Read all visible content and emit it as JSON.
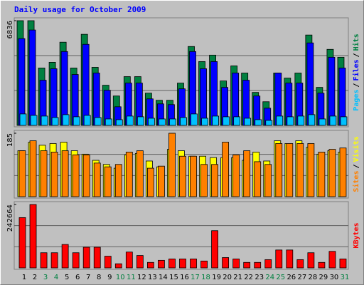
{
  "chart_data": [
    {
      "type": "bar",
      "title": "Daily usage for October 2009",
      "legend_separator": "/",
      "ylim": [
        0,
        6836
      ],
      "yticks": [
        6836
      ],
      "grid": true,
      "series": [
        {
          "name": "Hits",
          "color": "#008040",
          "values": [
            6836,
            6836,
            3746,
            4120,
            5431,
            3746,
            5946,
            3792,
            2622,
            1920,
            3184,
            3184,
            2107,
            1639,
            1639,
            2762,
            5150,
            4167,
            4588,
            2903,
            3886,
            3418,
            2154,
            1545,
            3418,
            3090,
            3418,
            5899,
            2481,
            4963,
            4448
          ]
        },
        {
          "name": "Files",
          "color": "#0000ff",
          "values": [
            5665,
            6227,
            2950,
            3699,
            4822,
            3324,
            5291,
            3418,
            2294,
            1217,
            2762,
            2762,
            1732,
            1405,
            1358,
            2388,
            4822,
            3699,
            4167,
            2481,
            3418,
            2950,
            1920,
            1124,
            3418,
            2762,
            2762,
            5384,
            2107,
            4448,
            3746
          ]
        },
        {
          "name": "Pages",
          "color": "#00c0ff",
          "values": [
            749,
            655,
            608,
            515,
            702,
            562,
            655,
            515,
            421,
            375,
            608,
            562,
            468,
            421,
            421,
            515,
            749,
            468,
            608,
            562,
            562,
            468,
            375,
            328,
            608,
            562,
            608,
            702,
            421,
            608,
            562
          ]
        }
      ]
    },
    {
      "type": "bar",
      "legend_separator": "/",
      "ylim": [
        0,
        185
      ],
      "yticks": [
        185
      ],
      "grid": true,
      "series": [
        {
          "name": "Visits",
          "color": "#ffff00",
          "values": [
            134,
            159,
            150,
            155,
            159,
            134,
            124,
            106,
            94,
            83,
            122,
            126,
            104,
            87,
            138,
            134,
            118,
            118,
            114,
            114,
            114,
            106,
            130,
            104,
            163,
            155,
            163,
            144,
            124,
            134,
            130
          ]
        },
        {
          "name": "Sites",
          "color": "#ff8000",
          "values": [
            134,
            163,
            134,
            130,
            134,
            122,
            122,
            98,
            87,
            94,
            130,
            134,
            83,
            89,
            185,
            118,
            118,
            94,
            94,
            159,
            122,
            134,
            102,
            94,
            155,
            155,
            155,
            155,
            130,
            138,
            142
          ]
        }
      ]
    },
    {
      "type": "bar",
      "ylim": [
        0,
        242664
      ],
      "yticks": [
        242664
      ],
      "grid": true,
      "categories": [
        "1",
        "2",
        "3",
        "4",
        "5",
        "6",
        "7",
        "8",
        "9",
        "10",
        "11",
        "12",
        "13",
        "14",
        "15",
        "16",
        "17",
        "18",
        "19",
        "20",
        "21",
        "22",
        "23",
        "24",
        "25",
        "26",
        "27",
        "28",
        "29",
        "30",
        "31"
      ],
      "category_colors": [
        "#000000",
        "#000000",
        "#008040",
        "#008040",
        "#000000",
        "#000000",
        "#000000",
        "#000000",
        "#000000",
        "#008040",
        "#008040",
        "#000000",
        "#000000",
        "#000000",
        "#000000",
        "#000000",
        "#008040",
        "#008040",
        "#000000",
        "#000000",
        "#000000",
        "#000000",
        "#000000",
        "#008040",
        "#008040",
        "#000000",
        "#000000",
        "#000000",
        "#000000",
        "#000000",
        "#008040"
      ],
      "series": [
        {
          "name": "KBytes",
          "color": "#ff0000",
          "values": [
            192552,
            242664,
            58029,
            58029,
            89682,
            58029,
            79131,
            79131,
            44841,
            15826,
            60667,
            47479,
            21102,
            29015,
            34290,
            34290,
            34290,
            26377,
            142436,
            39566,
            34290,
            21102,
            21102,
            31652,
            68580,
            68580,
            31652,
            58029,
            21102,
            63305,
            34290
          ]
        }
      ]
    }
  ]
}
